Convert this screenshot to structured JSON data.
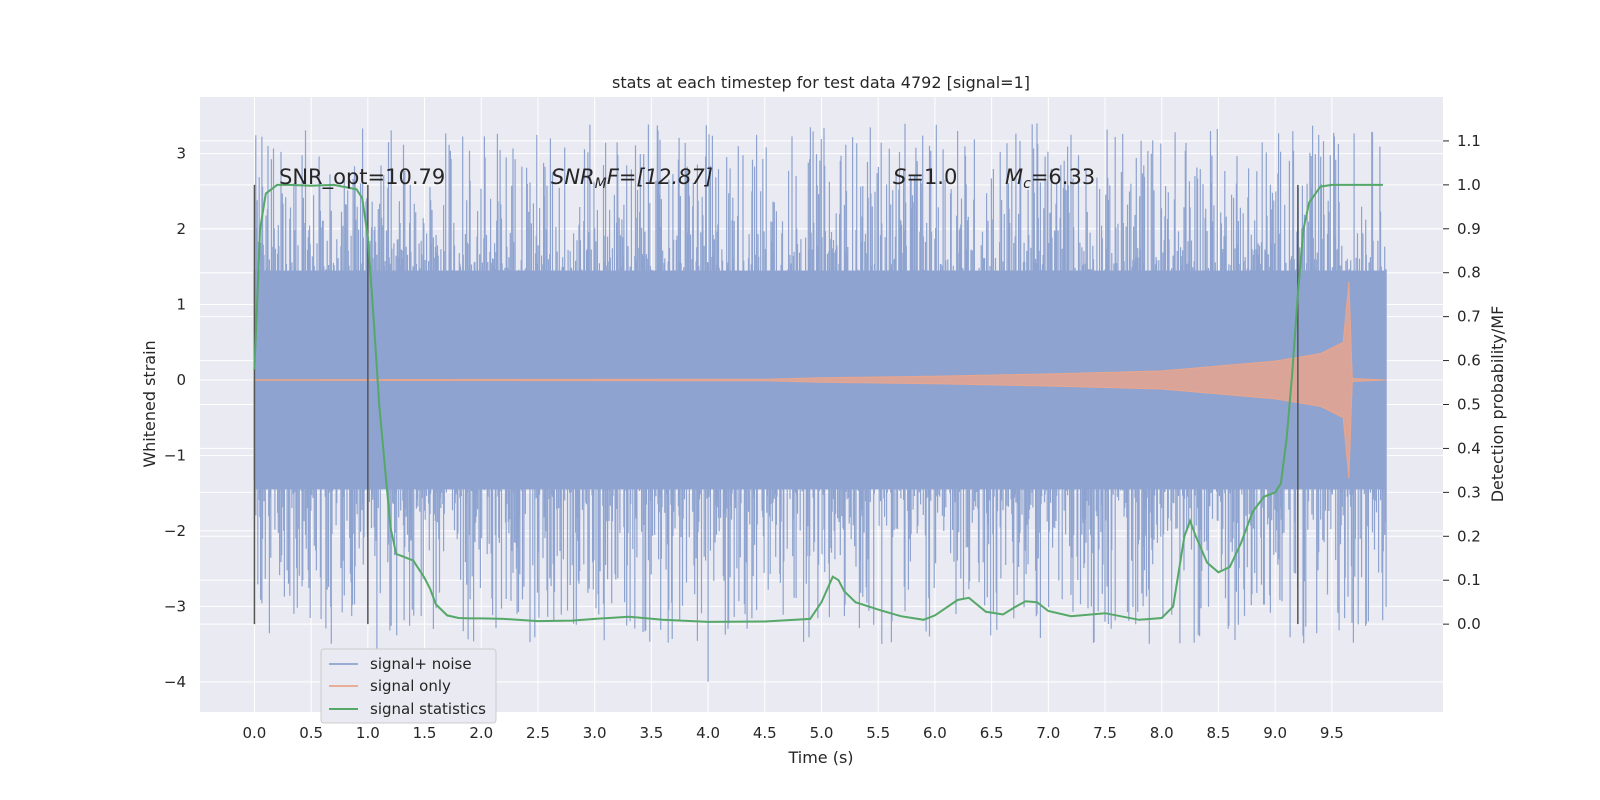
{
  "chart_data": {
    "type": "line",
    "title": "stats at each timestep for test data 4792 [signal=1]",
    "xlabel": "Time (s)",
    "ylabel": "Whitened strain",
    "ylabel_right": "Detection probability/MF",
    "xlim": [
      -0.48,
      10.48
    ],
    "ylim": [
      -4.4,
      3.75
    ],
    "ylim_right": [
      -0.2,
      1.2
    ],
    "x_ticks": [
      0.0,
      0.5,
      1.0,
      1.5,
      2.0,
      2.5,
      3.0,
      3.5,
      4.0,
      4.5,
      5.0,
      5.5,
      6.0,
      6.5,
      7.0,
      7.5,
      8.0,
      8.5,
      9.0,
      9.5
    ],
    "x_tick_labels": [
      "0.0",
      "0.5",
      "1.0",
      "1.5",
      "2.0",
      "2.5",
      "3.0",
      "3.5",
      "4.0",
      "4.5",
      "5.0",
      "5.5",
      "6.0",
      "6.5",
      "7.0",
      "7.5",
      "8.0",
      "8.5",
      "9.0",
      "9.5"
    ],
    "y_ticks": [
      3,
      2,
      1,
      0,
      -1,
      -2,
      -3,
      -4
    ],
    "y_tick_labels": [
      "3",
      "2",
      "1",
      "0",
      "−1",
      "−2",
      "−3",
      "−4"
    ],
    "y_right_ticks": [
      1.1,
      1.0,
      0.9,
      0.8,
      0.7,
      0.6,
      0.5,
      0.4,
      0.3,
      0.2,
      0.1,
      0.0
    ],
    "y_right_tick_labels": [
      "1.1",
      "1.0",
      "0.9",
      "0.8",
      "0.7",
      "0.6",
      "0.5",
      "0.4",
      "0.3",
      "0.2",
      "0.1",
      "0.0"
    ],
    "grid": true,
    "legend_placement": "lower-left",
    "legend": [
      {
        "label": "signal+ noise",
        "color": "#8ea3cf"
      },
      {
        "label": "signal only",
        "color": "#e8a68e"
      },
      {
        "label": "signal statistics",
        "color": "#55a868"
      }
    ],
    "annotations": {
      "snr_opt": "SNR_opt=10.79",
      "snr_mf_sym": "SNR",
      "snr_mf_sub": "M",
      "snr_mf_rest": "F=[12.87]",
      "s_sym": "S",
      "s_rest": "=1.0",
      "mc_sym": "M",
      "mc_sub": "c",
      "mc_rest": "=6.33"
    },
    "vlines_x": [
      0.0,
      1.0,
      9.2
    ],
    "vlines_y_range": [
      -3.25,
      2.6
    ],
    "series": [
      {
        "name": "signal+ noise",
        "color": "#8ea3cf",
        "x_range": [
          0.0,
          9.98
        ],
        "band_upper": 1.45,
        "band_lower": -1.45,
        "spike_max": 3.4,
        "spike_min": -4.0,
        "spike_peaks": [
          {
            "x": 1.08,
            "y": -3.6
          },
          {
            "x": 4.0,
            "y": -4.0
          },
          {
            "x": 6.9,
            "y": 3.4
          },
          {
            "x": 6.2,
            "y": 3.3
          },
          {
            "x": 8.43,
            "y": 3.3
          },
          {
            "x": 7.2,
            "y": 3.25
          }
        ]
      },
      {
        "name": "signal only",
        "color": "#e8a68e",
        "x_range": [
          0.0,
          9.98
        ],
        "envelope": [
          {
            "x": 0.0,
            "amp": 0.005
          },
          {
            "x": 4.5,
            "amp": 0.01
          },
          {
            "x": 5.0,
            "amp": 0.03
          },
          {
            "x": 6.0,
            "amp": 0.05
          },
          {
            "x": 7.0,
            "amp": 0.08
          },
          {
            "x": 8.0,
            "amp": 0.12
          },
          {
            "x": 9.0,
            "amp": 0.25
          },
          {
            "x": 9.4,
            "amp": 0.35
          },
          {
            "x": 9.6,
            "amp": 0.5
          },
          {
            "x": 9.65,
            "amp": 1.3
          },
          {
            "x": 9.68,
            "amp": 0.02
          },
          {
            "x": 9.98,
            "amp": 0.0
          }
        ]
      },
      {
        "name": "signal statistics",
        "color": "#55a868",
        "axis": "right",
        "x": [
          0.0,
          0.05,
          0.1,
          0.2,
          0.3,
          0.5,
          0.7,
          0.9,
          0.95,
          1.0,
          1.05,
          1.1,
          1.2,
          1.25,
          1.3,
          1.35,
          1.4,
          1.5,
          1.55,
          1.6,
          1.7,
          1.8,
          1.9,
          2.0,
          2.2,
          2.5,
          2.8,
          3.0,
          3.3,
          3.6,
          4.0,
          4.5,
          4.9,
          5.0,
          5.1,
          5.15,
          5.2,
          5.3,
          5.5,
          5.7,
          5.9,
          6.0,
          6.2,
          6.3,
          6.45,
          6.6,
          6.7,
          6.8,
          6.9,
          7.0,
          7.2,
          7.5,
          7.8,
          8.0,
          8.1,
          8.2,
          8.25,
          8.3,
          8.4,
          8.5,
          8.6,
          8.7,
          8.8,
          8.9,
          9.0,
          9.05,
          9.1,
          9.15,
          9.2,
          9.25,
          9.3,
          9.4,
          9.5,
          9.7,
          9.95
        ],
        "y": [
          0.58,
          0.9,
          0.98,
          1.0,
          1.0,
          0.998,
          1.0,
          0.99,
          0.97,
          0.88,
          0.7,
          0.5,
          0.22,
          0.16,
          0.155,
          0.15,
          0.145,
          0.105,
          0.08,
          0.045,
          0.02,
          0.014,
          0.013,
          0.013,
          0.012,
          0.007,
          0.008,
          0.012,
          0.017,
          0.01,
          0.005,
          0.006,
          0.012,
          0.05,
          0.108,
          0.1,
          0.075,
          0.05,
          0.033,
          0.018,
          0.01,
          0.02,
          0.055,
          0.06,
          0.028,
          0.022,
          0.038,
          0.052,
          0.05,
          0.03,
          0.018,
          0.025,
          0.01,
          0.014,
          0.04,
          0.2,
          0.235,
          0.2,
          0.14,
          0.118,
          0.13,
          0.185,
          0.255,
          0.29,
          0.3,
          0.32,
          0.42,
          0.57,
          0.75,
          0.9,
          0.96,
          0.996,
          1.0,
          1.0,
          1.0
        ]
      }
    ]
  }
}
